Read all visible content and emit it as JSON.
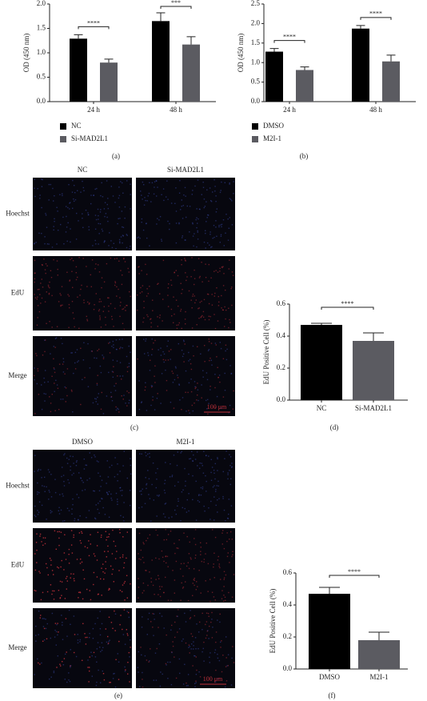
{
  "chart_data": [
    {
      "type": "bar",
      "panel_label": "(a)",
      "ylabel": "OD (450 nm)",
      "categories": [
        "24 h",
        "48 h"
      ],
      "series": [
        {
          "name": "NC",
          "color": "#000000",
          "values": [
            1.29,
            1.65
          ],
          "errors": [
            0.08,
            0.17
          ]
        },
        {
          "name": "Si-MAD2L1",
          "color": "#5b5b61",
          "values": [
            0.8,
            1.17
          ],
          "errors": [
            0.07,
            0.16
          ]
        }
      ],
      "significance": [
        "****",
        "***"
      ],
      "ylim": [
        0,
        2
      ],
      "yticks": [
        {
          "value": 0,
          "label": "0.0"
        },
        0.5,
        {
          "value": 1,
          "label": "1.0"
        },
        1.5,
        {
          "value": 2,
          "label": "2.0"
        }
      ]
    },
    {
      "type": "bar",
      "panel_label": "(b)",
      "ylabel": "OD (450 nm)",
      "categories": [
        "24 h",
        "48 h"
      ],
      "series": [
        {
          "name": "DMSO",
          "color": "#000000",
          "values": [
            1.28,
            1.87
          ],
          "errors": [
            0.08,
            0.08
          ]
        },
        {
          "name": "M2I-1",
          "color": "#5b5b61",
          "values": [
            0.81,
            1.03
          ],
          "errors": [
            0.08,
            0.16
          ]
        }
      ],
      "significance": [
        "****",
        "****"
      ],
      "ylim": [
        0,
        2.5
      ],
      "yticks": [
        {
          "value": 0,
          "label": "0.0"
        },
        0.5,
        {
          "value": 1,
          "label": "1.0"
        },
        1.5,
        {
          "value": 2,
          "label": "2.0"
        },
        2.5
      ]
    },
    {
      "type": "bar",
      "panel_label": "(d)",
      "ylabel": "EdU Positive Cell (%)",
      "categories": [
        "NC",
        "Si-MAD2L1"
      ],
      "values": [
        0.47,
        0.37
      ],
      "errors": [
        0.01,
        0.05
      ],
      "colors": [
        "#000000",
        "#5b5b61"
      ],
      "significance": [
        "****"
      ],
      "ylim": [
        0,
        0.6
      ],
      "yticks": [
        {
          "value": 0,
          "label": "0.0"
        },
        0.2,
        0.4,
        0.6
      ]
    },
    {
      "type": "bar",
      "panel_label": "(f)",
      "ylabel": "EdU Positive Cell (%)",
      "categories": [
        "DMSO",
        "M2I-1"
      ],
      "values": [
        0.47,
        0.18
      ],
      "errors": [
        0.04,
        0.05
      ],
      "colors": [
        "#000000",
        "#5b5b61"
      ],
      "significance": [
        "****"
      ],
      "ylim": [
        0,
        0.6
      ],
      "yticks": [
        {
          "value": 0,
          "label": "0.0"
        },
        0.2,
        0.4,
        0.6
      ]
    }
  ],
  "image_panels": [
    {
      "panel_label": "(c)",
      "columns": [
        "NC",
        "Si-MAD2L1"
      ],
      "rows": [
        "Hoechst",
        "EdU",
        "Merge"
      ],
      "scale_bar": "100 μm"
    },
    {
      "panel_label": "(e)",
      "columns": [
        "DMSO",
        "M2I-1"
      ],
      "rows": [
        "Hoechst",
        "EdU",
        "Merge"
      ],
      "scale_bar": "100 μm"
    }
  ]
}
